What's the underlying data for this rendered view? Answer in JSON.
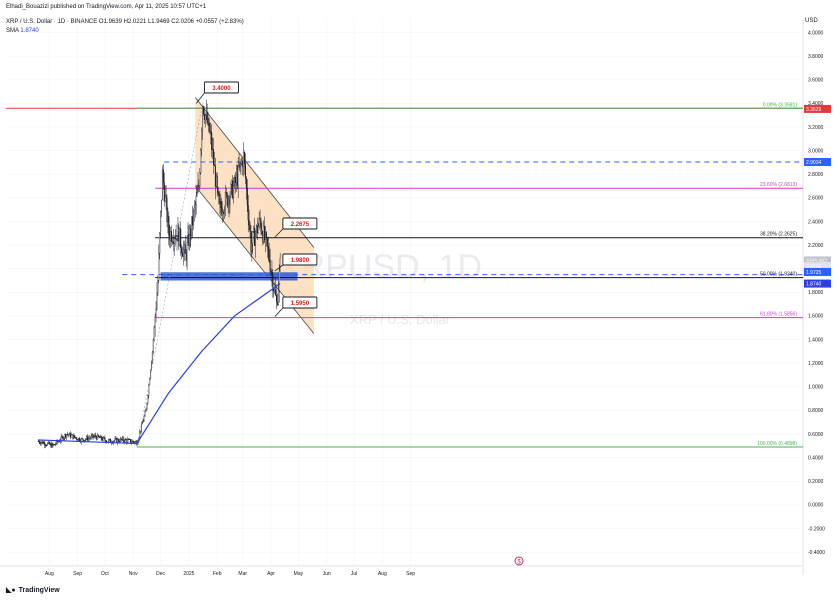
{
  "header": {
    "author_line": "Elhadi_Bouazizi published on TradingView.com, Apr 11, 2025 10:57 UTC+1",
    "symbol_line": "XRP / U.S. Dollar · 1D · BINANCE  O1.9639  H2.0221  L1.9469  C2.0206  +0.0557 (+2.83%)",
    "sma_label": "SMA",
    "sma_value": "1.8740"
  },
  "currency": "USD",
  "watermark": {
    "main": "XRPUSD, 1D",
    "sub": "XRP / U.S. Dollar"
  },
  "footer": {
    "brand": "TradingView",
    "logo_icon": "tradingview-logo-icon"
  },
  "colors": {
    "candle": "#131722",
    "sma": "#2c3ee0",
    "channel_fill": "#fbd7b0",
    "fib_0": "#4caf50",
    "fib_236": "#d03cd0",
    "fib_382": "#131722",
    "fib_50": "#131722",
    "fib_618": "#d03cd0",
    "fib_100": "#4caf50",
    "red_line": "#e53935",
    "blue_dash": "#2962ff",
    "support_band": "#2f5fd0"
  },
  "chart_data": {
    "type": "candlestick",
    "title": "XRP / U.S. Dollar · 1D · BINANCE",
    "ylim": [
      -0.5,
      4.2
    ],
    "y_ticks": [
      "4.0000",
      "3.8000",
      "3.6000",
      "3.4000",
      "3.2000",
      "3.0000",
      "2.8000",
      "2.6000",
      "2.4000",
      "2.2000",
      "2.0000",
      "1.8000",
      "1.6000",
      "1.4000",
      "1.2000",
      "1.0000",
      "0.8000",
      "0.6000",
      "0.4000",
      "0.2000",
      "0.0000",
      "-0.2000",
      "-0.4000"
    ],
    "x_ticks": [
      "Aug",
      "Sep",
      "Oct",
      "Nov",
      "Dec",
      "2025",
      "Feb",
      "Mar",
      "Apr",
      "May",
      "Jun",
      "Jul",
      "Aug",
      "Sep"
    ],
    "ohlc_last": {
      "open": 1.9639,
      "high": 2.0221,
      "low": 1.9469,
      "close": 2.0206,
      "change": 0.0557,
      "change_pct": 2.83
    },
    "price_path": [
      [
        "2024-07-20",
        0.54
      ],
      [
        "2024-08-05",
        0.5
      ],
      [
        "2024-08-20",
        0.6
      ],
      [
        "2024-09-05",
        0.55
      ],
      [
        "2024-09-20",
        0.58
      ],
      [
        "2024-10-05",
        0.54
      ],
      [
        "2024-10-20",
        0.55
      ],
      [
        "2024-11-05",
        0.53
      ],
      [
        "2024-11-15",
        0.8
      ],
      [
        "2024-11-22",
        1.3
      ],
      [
        "2024-11-28",
        1.9
      ],
      [
        "2024-12-03",
        2.8
      ],
      [
        "2024-12-10",
        2.3
      ],
      [
        "2024-12-20",
        2.3
      ],
      [
        "2024-12-28",
        2.1
      ],
      [
        "2025-01-05",
        2.4
      ],
      [
        "2025-01-12",
        2.7
      ],
      [
        "2025-01-16",
        3.4
      ],
      [
        "2025-01-25",
        3.1
      ],
      [
        "2025-02-03",
        2.5
      ],
      [
        "2025-02-12",
        2.6
      ],
      [
        "2025-02-20",
        2.7
      ],
      [
        "2025-03-02",
        2.95
      ],
      [
        "2025-03-10",
        2.2
      ],
      [
        "2025-03-20",
        2.4
      ],
      [
        "2025-03-30",
        2.1
      ],
      [
        "2025-04-07",
        1.7
      ],
      [
        "2025-04-11",
        2.02
      ]
    ],
    "sma": {
      "period_label": "SMA",
      "value": 1.874,
      "points": [
        [
          "2024-07-20",
          0.55
        ],
        [
          "2024-11-05",
          0.52
        ],
        [
          "2024-12-10",
          0.95
        ],
        [
          "2025-01-15",
          1.3
        ],
        [
          "2025-02-20",
          1.6
        ],
        [
          "2025-04-11",
          1.874
        ]
      ]
    },
    "fib_levels": [
      {
        "label": "0.00% (3.3581)",
        "value": 3.3581
      },
      {
        "label": "23.60% (2.6813)",
        "value": 2.6813
      },
      {
        "label": "38.20% (2.2625)",
        "value": 2.2625
      },
      {
        "label": "50.00% (1.9240)",
        "value": 1.924
      },
      {
        "label": "61.80% (1.5856)",
        "value": 1.5856
      },
      {
        "label": "100.00% (0.4898)",
        "value": 0.4898
      }
    ],
    "annotations": [
      {
        "text": "3.4000",
        "value": 3.4
      },
      {
        "text": "2.2675",
        "value": 2.2675
      },
      {
        "text": "1.9800",
        "value": 1.98
      },
      {
        "text": "1.5950",
        "value": 1.595
      }
    ],
    "horizontal_lines": {
      "red": 3.3581,
      "blue_dashed_upper": 2.9034,
      "blue_dashed_lower": 1.95
    },
    "price_tags": [
      {
        "text": "3.3529",
        "value": 3.3529,
        "color": "#e53935"
      },
      {
        "text": "2.9034",
        "value": 2.9034,
        "color": "#2962ff"
      },
      {
        "text": "XRPUSD",
        "value": 2.07,
        "color": "#c0c3cc"
      },
      {
        "text": "2.0206",
        "value": 2.0206,
        "color": "#e0e3eb"
      },
      {
        "text": "14:02:26",
        "value": 1.97,
        "color": "#e0e3eb"
      },
      {
        "text": "1.9725",
        "value": 1.9725,
        "color": "#2962ff"
      },
      {
        "text": "1.8740",
        "value": 1.874,
        "color": "#2c3ee0"
      }
    ]
  }
}
